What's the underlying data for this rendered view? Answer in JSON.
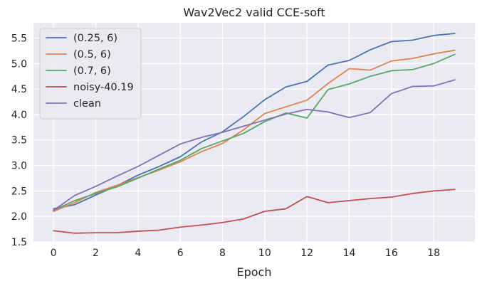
{
  "chart_data": {
    "type": "line",
    "title": "Wav2Vec2 valid CCE-soft",
    "xlabel": "Epoch",
    "ylabel": "",
    "xlim": [
      -0.95,
      19.95
    ],
    "ylim": [
      1.5,
      5.8
    ],
    "xticks": [
      0,
      2,
      4,
      6,
      8,
      10,
      12,
      14,
      16,
      18
    ],
    "yticks": [
      1.5,
      2.0,
      2.5,
      3.0,
      3.5,
      4.0,
      4.5,
      5.0,
      5.5
    ],
    "grid": true,
    "legend_position": "top-left",
    "x": [
      0,
      1,
      2,
      3,
      4,
      5,
      6,
      7,
      8,
      9,
      10,
      11,
      12,
      13,
      14,
      15,
      16,
      17,
      18,
      19
    ],
    "series": [
      {
        "name": "(0.25, 6)",
        "color": "#4c72b0",
        "values": [
          2.15,
          2.23,
          2.42,
          2.6,
          2.81,
          2.98,
          3.17,
          3.46,
          3.66,
          3.96,
          4.29,
          4.54,
          4.65,
          4.97,
          5.06,
          5.27,
          5.43,
          5.46,
          5.55,
          5.59
        ]
      },
      {
        "name": "(0.5, 6)",
        "color": "#dd8452",
        "values": [
          2.1,
          2.27,
          2.47,
          2.61,
          2.76,
          2.91,
          3.07,
          3.27,
          3.43,
          3.7,
          4.02,
          4.15,
          4.28,
          4.61,
          4.9,
          4.87,
          5.05,
          5.1,
          5.19,
          5.26
        ]
      },
      {
        "name": "(0.7, 6)",
        "color": "#55a868",
        "values": [
          2.12,
          2.31,
          2.45,
          2.58,
          2.75,
          2.93,
          3.1,
          3.33,
          3.48,
          3.63,
          3.86,
          4.03,
          3.93,
          4.49,
          4.6,
          4.75,
          4.86,
          4.88,
          5.0,
          5.18
        ]
      },
      {
        "name": "noisy-40.19",
        "color": "#c44e52",
        "values": [
          1.72,
          1.67,
          1.68,
          1.68,
          1.71,
          1.73,
          1.79,
          1.83,
          1.88,
          1.95,
          2.1,
          2.15,
          2.39,
          2.27,
          2.31,
          2.35,
          2.38,
          2.45,
          2.5,
          2.53
        ]
      },
      {
        "name": "clean",
        "color": "#8172b3",
        "values": [
          2.12,
          2.41,
          2.59,
          2.79,
          2.98,
          3.2,
          3.42,
          3.55,
          3.65,
          3.77,
          3.89,
          4.01,
          4.1,
          4.05,
          3.94,
          4.04,
          4.41,
          4.55,
          4.56,
          4.68
        ]
      }
    ]
  }
}
